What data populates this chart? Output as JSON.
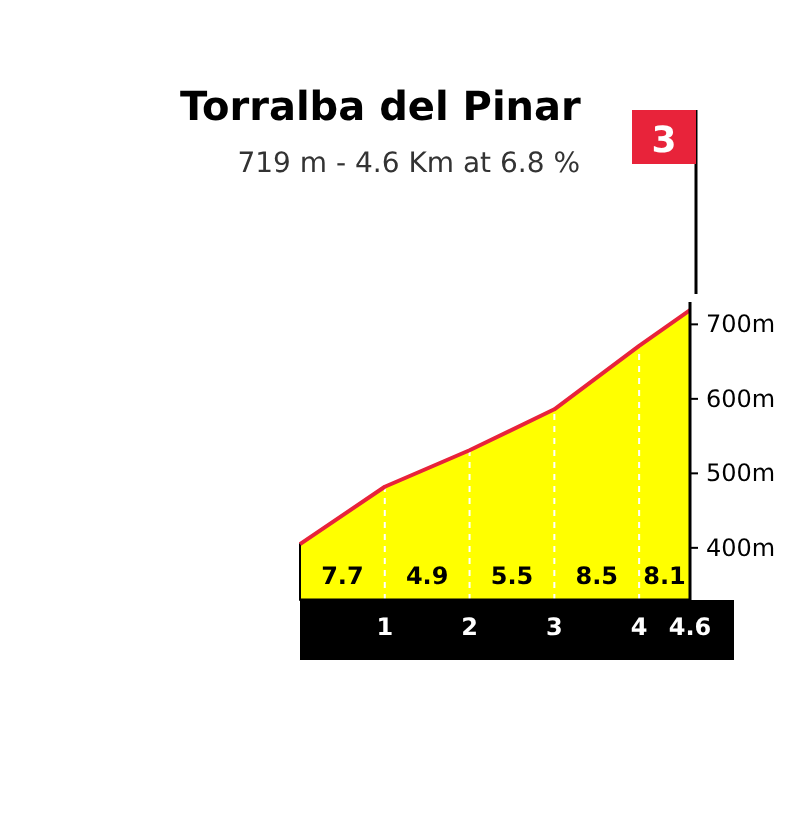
{
  "chart_data": {
    "type": "area",
    "title": "Torralba del Pinar",
    "subtitle": "719 m - 4.6 Km at 6.8 %",
    "x": [
      0,
      1,
      2,
      3,
      4,
      4.6
    ],
    "series": [
      {
        "color": "#ffff00",
        "values": [
          405,
          482,
          531,
          586,
          671,
          719
        ]
      }
    ],
    "xlim": [
      0,
      4.6
    ],
    "xticks": [
      1,
      2,
      3,
      4,
      4.6
    ],
    "ylim": [
      330,
      730
    ],
    "yticks": [
      {
        "value": 400,
        "label": "400m"
      },
      {
        "value": 500,
        "label": "500m"
      },
      {
        "value": 600,
        "label": "600m"
      },
      {
        "value": 700,
        "label": "700m"
      }
    ],
    "grid": "x",
    "annotations": [
      "7.7",
      "4.9",
      "5.5",
      "8.5",
      "8.1",
      "3"
    ]
  }
}
